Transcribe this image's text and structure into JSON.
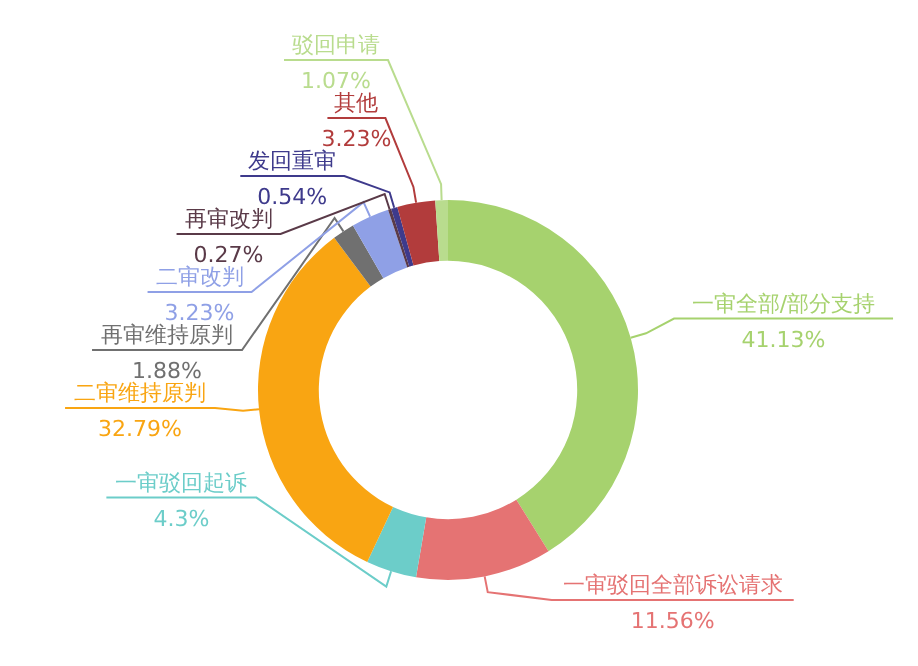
{
  "chart_data": {
    "type": "donut",
    "categories": [
      "一审全部/部分支持",
      "一审驳回全部诉讼请求",
      "一审驳回起诉",
      "二审维持原判",
      "再审维持原判",
      "二审改判",
      "再审改判",
      "发回重审",
      "其他",
      "驳回申请"
    ],
    "values": [
      41.13,
      11.56,
      4.3,
      32.79,
      1.88,
      3.23,
      0.27,
      0.54,
      3.23,
      1.07
    ],
    "value_labels": [
      "41.13%",
      "11.56%",
      "4.3%",
      "32.79%",
      "1.88%",
      "3.23%",
      "0.27%",
      "0.54%",
      "3.23%",
      "1.07%"
    ],
    "colors": [
      "#a6d26e",
      "#e57373",
      "#6ccdc9",
      "#f9a512",
      "#707070",
      "#8fa0e6",
      "#5a3a48",
      "#3e3a8c",
      "#b23c3c",
      "#b9dc8e"
    ],
    "legend": false
  }
}
